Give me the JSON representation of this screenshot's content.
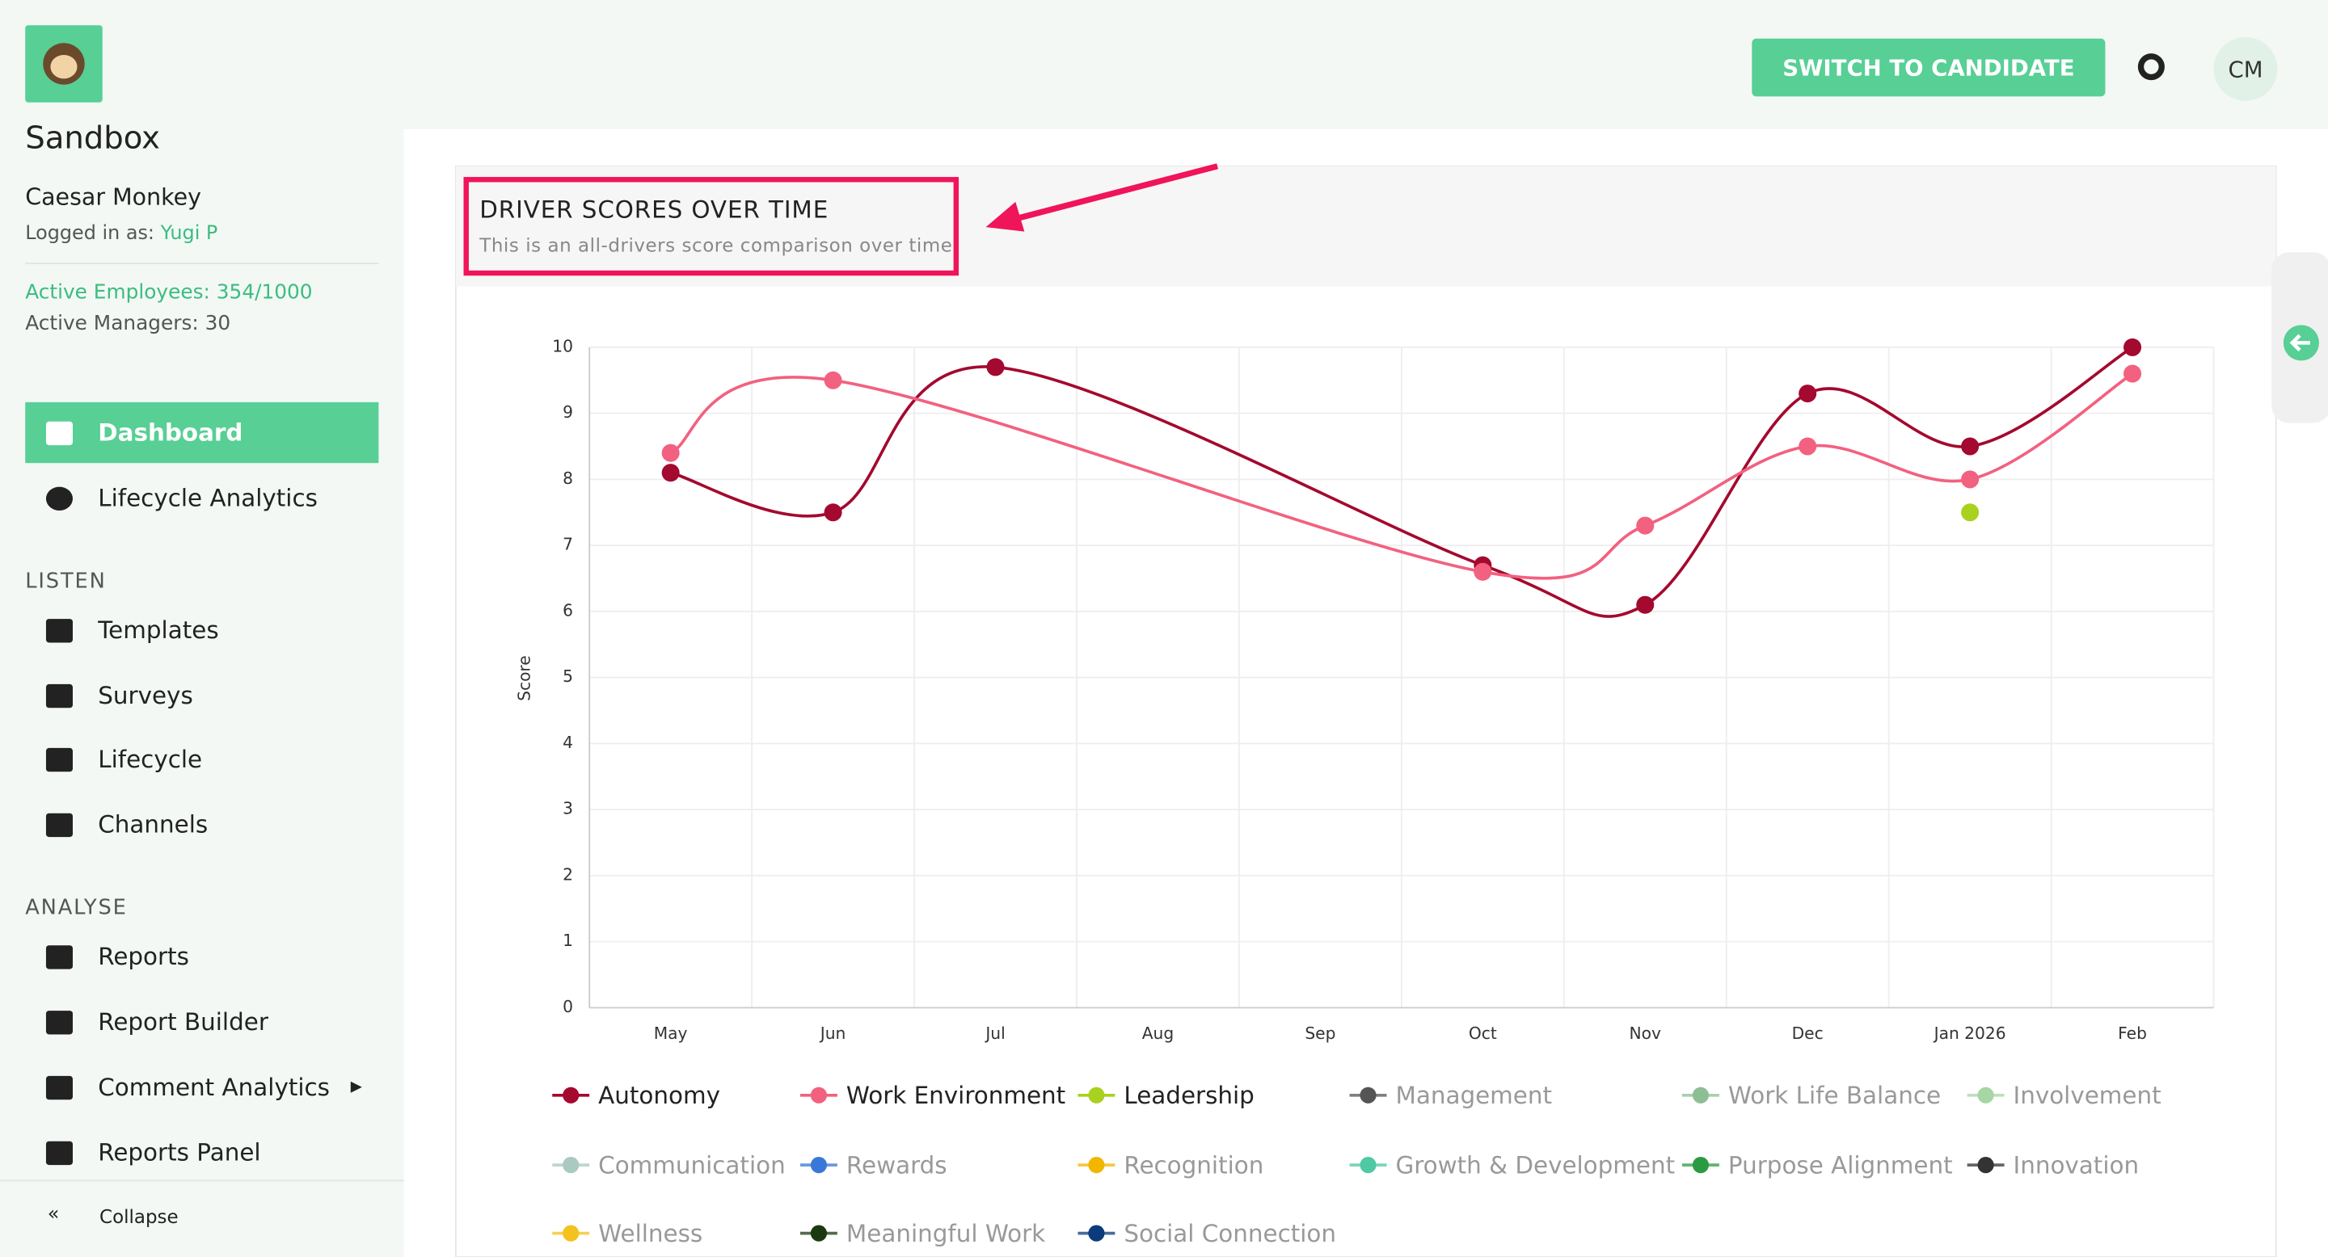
{
  "header": {
    "button": "SWITCH TO CANDIDATE",
    "avatar": "CM"
  },
  "sidebar": {
    "org": "Sandbox",
    "user": "Caesar Monkey",
    "logged_in_label": "Logged in as:",
    "logged_in_user": "Yugi P",
    "active_employees": "Active Employees: 354/1000",
    "active_managers": "Active Managers: 30",
    "nav": [
      "Dashboard",
      "Lifecycle Analytics"
    ],
    "sections": [
      {
        "title": "LISTEN",
        "items": [
          "Templates",
          "Surveys",
          "Lifecycle",
          "Channels"
        ]
      },
      {
        "title": "ANALYSE",
        "items": [
          "Reports",
          "Report Builder",
          "Comment Analytics",
          "Reports Panel"
        ]
      }
    ],
    "collapse": "Collapse"
  },
  "chart_data": {
    "type": "line",
    "title": "DRIVER SCORES OVER TIME",
    "subtitle": "This is an all-drivers score comparison over time",
    "y_label": "Score",
    "categories": [
      "May",
      "Jun",
      "Jul",
      "Aug",
      "Sep",
      "Oct",
      "Nov",
      "Dec",
      "Jan 2026",
      "Feb"
    ],
    "ylim": [
      0,
      10
    ],
    "yticks": [
      0,
      1,
      2,
      3,
      4,
      5,
      6,
      7,
      8,
      9,
      10
    ],
    "grid": true,
    "span_gaps": true,
    "smooth": true,
    "series": [
      {
        "name": "Autonomy",
        "color": "#a4092f",
        "values": [
          8.1,
          7.5,
          9.7,
          null,
          null,
          6.7,
          6.1,
          9.3,
          8.5,
          10
        ]
      },
      {
        "name": "Work Environment",
        "color": "#f2617f",
        "values": [
          8.4,
          9.5,
          null,
          null,
          null,
          6.6,
          7.3,
          8.5,
          8.0,
          9.6
        ]
      },
      {
        "name": "Leadership",
        "color": "#a9d11f",
        "values": [
          null,
          null,
          null,
          null,
          null,
          null,
          null,
          null,
          7.5,
          null
        ]
      },
      {
        "name": "Management",
        "color": "#555555",
        "values": [
          null,
          null,
          null,
          null,
          null,
          null,
          null,
          null,
          null,
          null
        ]
      },
      {
        "name": "Work Life Balance",
        "color": "#8dbf95",
        "values": [
          null,
          null,
          null,
          null,
          null,
          null,
          null,
          null,
          null,
          null
        ]
      },
      {
        "name": "Involvement",
        "color": "#a6d6a3",
        "values": [
          null,
          null,
          null,
          null,
          null,
          null,
          null,
          null,
          null,
          null
        ]
      },
      {
        "name": "Communication",
        "color": "#a9c9c1",
        "values": [
          null,
          null,
          null,
          null,
          null,
          null,
          null,
          null,
          null,
          null
        ]
      },
      {
        "name": "Rewards",
        "color": "#3a78d8",
        "values": [
          null,
          null,
          null,
          null,
          null,
          null,
          null,
          null,
          null,
          null
        ]
      },
      {
        "name": "Recognition",
        "color": "#f2b600",
        "values": [
          null,
          null,
          null,
          null,
          null,
          null,
          null,
          null,
          null,
          null
        ]
      },
      {
        "name": "Growth & Development",
        "color": "#4fc9a3",
        "values": [
          null,
          null,
          null,
          null,
          null,
          null,
          null,
          null,
          null,
          null
        ]
      },
      {
        "name": "Purpose Alignment",
        "color": "#2a9b42",
        "values": [
          null,
          null,
          null,
          null,
          null,
          null,
          null,
          null,
          null,
          null
        ]
      },
      {
        "name": "Innovation",
        "color": "#333333",
        "values": [
          null,
          null,
          null,
          null,
          null,
          null,
          null,
          null,
          null,
          null
        ]
      },
      {
        "name": "Wellness",
        "color": "#f4c11e",
        "values": [
          null,
          null,
          null,
          null,
          null,
          null,
          null,
          null,
          null,
          null
        ]
      },
      {
        "name": "Meaningful Work",
        "color": "#1b3a12",
        "values": [
          null,
          null,
          null,
          null,
          null,
          null,
          null,
          null,
          null,
          null
        ]
      },
      {
        "name": "Social Connection",
        "color": "#0c3b7c",
        "values": [
          null,
          null,
          null,
          null,
          null,
          null,
          null,
          null,
          null,
          null
        ]
      }
    ]
  }
}
